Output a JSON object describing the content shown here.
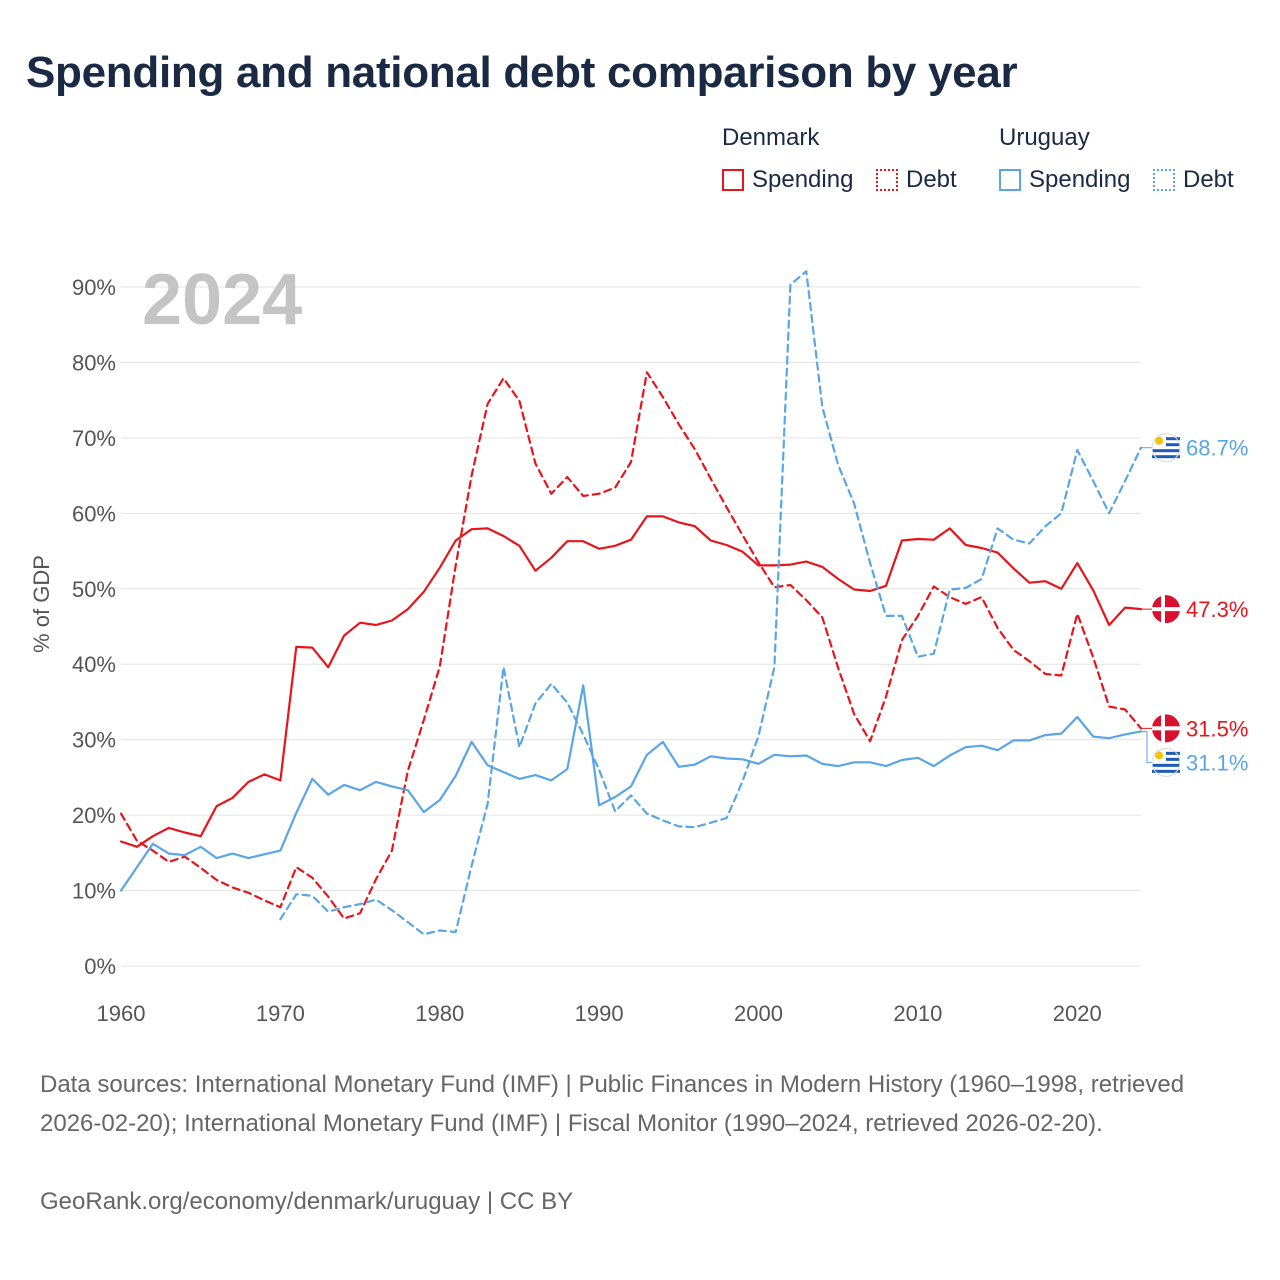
{
  "title": "Spending and national debt comparison by year",
  "legend": {
    "groups": [
      {
        "country": "Denmark",
        "color": "#e8141b",
        "items": [
          {
            "label": "Spending",
            "style": "solid"
          },
          {
            "label": "Debt",
            "style": "dotted"
          }
        ]
      },
      {
        "country": "Uruguay",
        "color": "#5aa5e6",
        "items": [
          {
            "label": "Spending",
            "style": "solid"
          },
          {
            "label": "Debt",
            "style": "dotted"
          }
        ]
      }
    ]
  },
  "footer": {
    "sources": "Data sources: International Monetary Fund (IMF) | Public Finances in Modern History (1960–1998, retrieved 2026-02-20); International Monetary Fund (IMF) | Fiscal Monitor (1990–2024, retrieved 2026-02-20).",
    "credit": "GeoRank.org/economy/denmark/uruguay | CC BY"
  },
  "chart_data": {
    "type": "line",
    "title": "Spending and national debt comparison by year",
    "year_label": "2024",
    "xlabel": "",
    "ylabel": "% of GDP",
    "xlim": [
      1960,
      2024
    ],
    "ylim": [
      0,
      90
    ],
    "x_ticks": [
      1960,
      1970,
      1980,
      1990,
      2000,
      2010,
      2020
    ],
    "y_ticks": [
      0,
      10,
      20,
      30,
      40,
      50,
      60,
      70,
      80,
      90
    ],
    "y_tick_labels": [
      "0%",
      "10%",
      "20%",
      "30%",
      "40%",
      "50%",
      "60%",
      "70%",
      "80%",
      "90%"
    ],
    "grid": true,
    "series": [
      {
        "name": "Denmark Spending",
        "country": "Denmark",
        "measure": "Spending",
        "color": "#e8141b",
        "dash": "solid",
        "end_label": "47.3%",
        "end_value": 47.3,
        "start_year": 1960,
        "values": [
          16.5,
          15.8,
          17.2,
          18.3,
          17.7,
          17.2,
          21.2,
          22.3,
          24.4,
          25.4,
          24.6,
          42.3,
          42.2,
          39.6,
          43.8,
          45.5,
          45.2,
          45.8,
          47.3,
          49.6,
          52.8,
          56.4,
          57.9,
          58.0,
          57.0,
          55.7,
          52.4,
          54.1,
          56.3,
          56.3,
          55.3,
          55.7,
          56.5,
          59.6,
          59.6,
          58.8,
          58.3,
          56.4,
          55.8,
          54.9,
          53.1,
          53.1,
          53.2,
          53.6,
          52.9,
          51.3,
          49.9,
          49.7,
          50.4,
          56.4,
          56.6,
          56.5,
          58.0,
          55.8,
          55.4,
          54.8,
          52.7,
          50.8,
          51.0,
          50.0,
          53.4,
          49.8,
          45.2,
          47.5,
          47.3
        ]
      },
      {
        "name": "Denmark Debt",
        "country": "Denmark",
        "measure": "Debt",
        "color": "#e8141b",
        "dash": "dashed",
        "end_label": "31.5%",
        "end_value": 31.5,
        "start_year": 1960,
        "values": [
          20.2,
          16.6,
          15.3,
          13.8,
          14.5,
          13.0,
          11.4,
          10.4,
          9.7,
          8.7,
          7.8,
          13.1,
          11.7,
          9.2,
          6.3,
          7.0,
          11.5,
          15.3,
          25.9,
          32.6,
          39.7,
          53.1,
          65.0,
          74.5,
          77.9,
          74.9,
          66.6,
          62.6,
          64.8,
          62.3,
          62.6,
          63.4,
          66.8,
          78.7,
          75.4,
          71.8,
          68.5,
          64.6,
          60.8,
          57.1,
          53.5,
          50.2,
          50.5,
          48.5,
          46.2,
          39.5,
          33.4,
          29.8,
          35.7,
          43.2,
          46.4,
          50.3,
          48.9,
          48.0,
          48.9,
          44.8,
          41.9,
          40.4,
          38.7,
          38.5,
          46.7,
          40.9,
          34.4,
          34.0,
          31.5
        ]
      },
      {
        "name": "Uruguay Spending",
        "country": "Uruguay",
        "measure": "Spending",
        "color": "#5aa5e6",
        "dash": "solid",
        "end_label": "31.1%",
        "end_value": 31.1,
        "start_year": 1960,
        "values": [
          10.0,
          13.1,
          16.2,
          14.9,
          14.7,
          15.8,
          14.3,
          14.9,
          14.3,
          14.8,
          15.3,
          20.3,
          24.8,
          22.7,
          24.0,
          23.3,
          24.4,
          23.8,
          23.3,
          20.4,
          22.0,
          25.2,
          29.7,
          26.6,
          25.7,
          24.8,
          25.3,
          24.6,
          26.1,
          37.2,
          21.3,
          22.4,
          23.8,
          28.0,
          29.7,
          26.4,
          26.7,
          27.8,
          27.5,
          27.4,
          26.8,
          28.0,
          27.8,
          27.9,
          26.8,
          26.5,
          27.0,
          27.0,
          26.5,
          27.3,
          27.6,
          26.5,
          27.9,
          29.0,
          29.2,
          28.6,
          29.9,
          29.9,
          30.6,
          30.8,
          33.0,
          30.4,
          30.2,
          30.7,
          31.1
        ]
      },
      {
        "name": "Uruguay Debt",
        "country": "Uruguay",
        "measure": "Debt",
        "color": "#5aa5e6",
        "dash": "dashed",
        "end_label": "68.7%",
        "end_value": 68.7,
        "start_year": 1970,
        "values": [
          6.2,
          9.5,
          9.3,
          7.2,
          7.8,
          8.2,
          8.8,
          7.4,
          5.8,
          4.2,
          4.7,
          4.5,
          13.3,
          21.5,
          39.6,
          29.0,
          34.8,
          37.4,
          34.9,
          30.7,
          26.0,
          20.5,
          22.6,
          20.2,
          19.3,
          18.5,
          18.4,
          19.0,
          19.6,
          24.5,
          30.5,
          39.6,
          90.3,
          92.1,
          74.1,
          66.4,
          61.3,
          53.4,
          46.4,
          46.4,
          41.0,
          41.4,
          49.9,
          50.1,
          51.3,
          58.0,
          56.5,
          56.0,
          58.3,
          60.0,
          68.4,
          64.3,
          60.0,
          64.3,
          68.7
        ]
      }
    ]
  }
}
